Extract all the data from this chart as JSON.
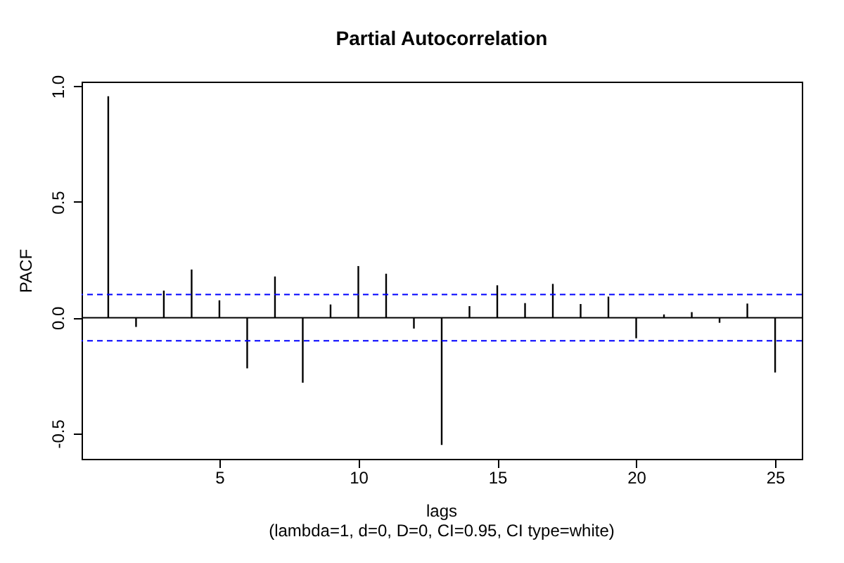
{
  "chart_data": {
    "type": "bar",
    "title": "Partial Autocorrelation",
    "xlabel": "lags",
    "ylabel": "PACF",
    "annotations": [
      "(lambda=1, d=0, D=0, CI=0.95, CI type=white)"
    ],
    "x": [
      1,
      2,
      3,
      4,
      5,
      6,
      7,
      8,
      9,
      10,
      11,
      12,
      13,
      14,
      15,
      16,
      17,
      18,
      19,
      20,
      21,
      22,
      23,
      24,
      25
    ],
    "series": [
      {
        "color": "#000000",
        "values": [
          0.957,
          -0.04,
          0.117,
          0.208,
          0.075,
          -0.219,
          0.178,
          -0.281,
          0.057,
          0.223,
          0.19,
          -0.047,
          -0.55,
          0.05,
          0.14,
          0.063,
          0.146,
          0.059,
          0.091,
          -0.089,
          0.014,
          0.024,
          -0.022,
          0.061,
          -0.237
        ]
      }
    ],
    "xlim": [
      0.04,
      25.96
    ],
    "xticks": [
      5,
      10,
      15,
      20,
      25
    ],
    "ylim": [
      -0.61,
      1.02
    ],
    "yticks": [
      -0.5,
      {
        "value": 0,
        "label": "0.0"
      },
      0.5,
      {
        "value": 1,
        "label": "1.0"
      }
    ],
    "ref_lines": [
      {
        "axis": "y",
        "value": 0.1,
        "color": "#0000ff",
        "line_style": "dashed"
      },
      {
        "axis": "y",
        "value": -0.1,
        "color": "#0000ff",
        "line_style": "dashed"
      },
      {
        "axis": "y",
        "value": 0,
        "color": "#000000",
        "line_style": "solid"
      }
    ],
    "grid": false
  }
}
